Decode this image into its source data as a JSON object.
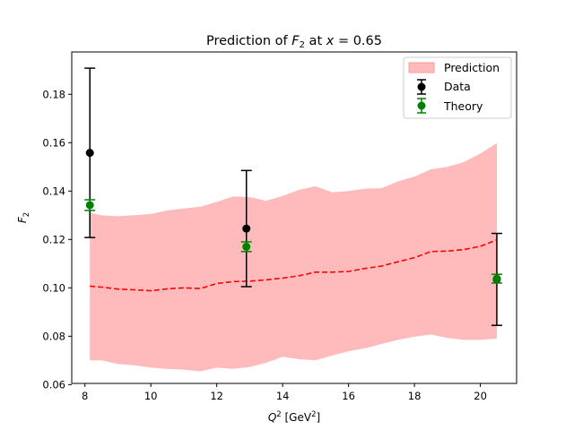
{
  "chart_data": {
    "type": "line",
    "title": "Prediction of F2 at x = 0.65",
    "title_parts": {
      "prefix": "Prediction of ",
      "var": "F",
      "sub": "2",
      "mid": " at ",
      "xvar": "x",
      "suffix": " = 0.65"
    },
    "xlabel": "Q2 [GeV2]",
    "xlabel_parts": {
      "var": "Q",
      "sup": "2",
      "unit_open": " [GeV",
      "unit_sup": "2",
      "unit_close": "]"
    },
    "ylabel": "F2",
    "ylabel_parts": {
      "var": "F",
      "sub": "2"
    },
    "xlim": [
      7.6,
      21.1
    ],
    "ylim": [
      0.0605,
      0.1975
    ],
    "xticks": [
      8,
      10,
      12,
      14,
      16,
      18,
      20
    ],
    "yticks": [
      0.06,
      0.08,
      0.1,
      0.12,
      0.14,
      0.16,
      0.18
    ],
    "ytick_labels": [
      "0.06",
      "0.08",
      "0.10",
      "0.12",
      "0.14",
      "0.16",
      "0.18"
    ],
    "grid": false,
    "legend_placement": "top-right",
    "legend": [
      {
        "label": "Prediction",
        "kind": "band",
        "color": "#ffbbbb"
      },
      {
        "label": "Data",
        "kind": "errorbar",
        "color": "#000000"
      },
      {
        "label": "Theory",
        "kind": "errorbar",
        "color": "#008000"
      }
    ],
    "prediction": {
      "line_color": "#ff0000",
      "fill_color": "#ffbbbb",
      "x": [
        8.15,
        8.5,
        9.0,
        9.5,
        10.0,
        10.5,
        11.0,
        11.5,
        12.0,
        12.5,
        13.0,
        13.5,
        14.0,
        14.5,
        15.0,
        15.5,
        16.0,
        16.5,
        17.0,
        17.5,
        18.0,
        18.5,
        19.0,
        19.5,
        20.0,
        20.5
      ],
      "mean": [
        0.1007,
        0.1003,
        0.0995,
        0.0992,
        0.0988,
        0.0996,
        0.1,
        0.0997,
        0.1018,
        0.1026,
        0.1028,
        0.1033,
        0.104,
        0.105,
        0.1065,
        0.1065,
        0.1068,
        0.108,
        0.109,
        0.1108,
        0.1125,
        0.115,
        0.1152,
        0.1158,
        0.1172,
        0.1198
      ],
      "upper": [
        0.131,
        0.13,
        0.1296,
        0.13,
        0.1305,
        0.132,
        0.1328,
        0.1335,
        0.1355,
        0.1378,
        0.1375,
        0.136,
        0.138,
        0.1405,
        0.142,
        0.1395,
        0.14,
        0.141,
        0.1412,
        0.144,
        0.146,
        0.149,
        0.15,
        0.152,
        0.1555,
        0.1598
      ],
      "lower": [
        0.07,
        0.07,
        0.0685,
        0.068,
        0.067,
        0.0665,
        0.0662,
        0.0655,
        0.067,
        0.0665,
        0.0673,
        0.069,
        0.0715,
        0.0705,
        0.07,
        0.072,
        0.0738,
        0.075,
        0.0768,
        0.0785,
        0.0798,
        0.0807,
        0.0793,
        0.0785,
        0.0785,
        0.079
      ]
    },
    "data_points": {
      "color": "#000000",
      "x": [
        8.15,
        12.9,
        20.5
      ],
      "y": [
        0.1558,
        0.1245,
        0.1035
      ],
      "err": [
        0.035,
        0.024,
        0.019
      ]
    },
    "theory_points": {
      "color": "#008000",
      "x": [
        8.15,
        12.9,
        20.5
      ],
      "y": [
        0.1342,
        0.117,
        0.1038
      ],
      "err": [
        0.0022,
        0.002,
        0.0018
      ]
    }
  }
}
